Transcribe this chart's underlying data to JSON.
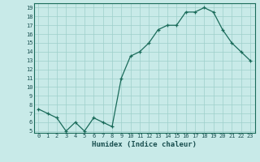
{
  "x": [
    0,
    1,
    2,
    3,
    4,
    5,
    6,
    7,
    8,
    9,
    10,
    11,
    12,
    13,
    14,
    15,
    16,
    17,
    18,
    19,
    20,
    21,
    22,
    23
  ],
  "y": [
    7.5,
    7.0,
    6.5,
    5.0,
    6.0,
    5.0,
    6.5,
    6.0,
    5.5,
    11.0,
    13.5,
    14.0,
    15.0,
    16.5,
    17.0,
    17.0,
    18.5,
    18.5,
    19.0,
    18.5,
    16.5,
    15.0,
    14.0,
    13.0
  ],
  "xlabel": "Humidex (Indice chaleur)",
  "xlim": [
    -0.5,
    23.5
  ],
  "ylim": [
    4.8,
    19.5
  ],
  "yticks": [
    5,
    6,
    7,
    8,
    9,
    10,
    11,
    12,
    13,
    14,
    15,
    16,
    17,
    18,
    19
  ],
  "xticks": [
    0,
    1,
    2,
    3,
    4,
    5,
    6,
    7,
    8,
    9,
    10,
    11,
    12,
    13,
    14,
    15,
    16,
    17,
    18,
    19,
    20,
    21,
    22,
    23
  ],
  "line_color": "#1a6b5a",
  "marker": "+",
  "bg_color": "#c8eae8",
  "grid_color": "#9ecfca",
  "tick_label_color": "#1a5050",
  "xlabel_color": "#1a5050"
}
